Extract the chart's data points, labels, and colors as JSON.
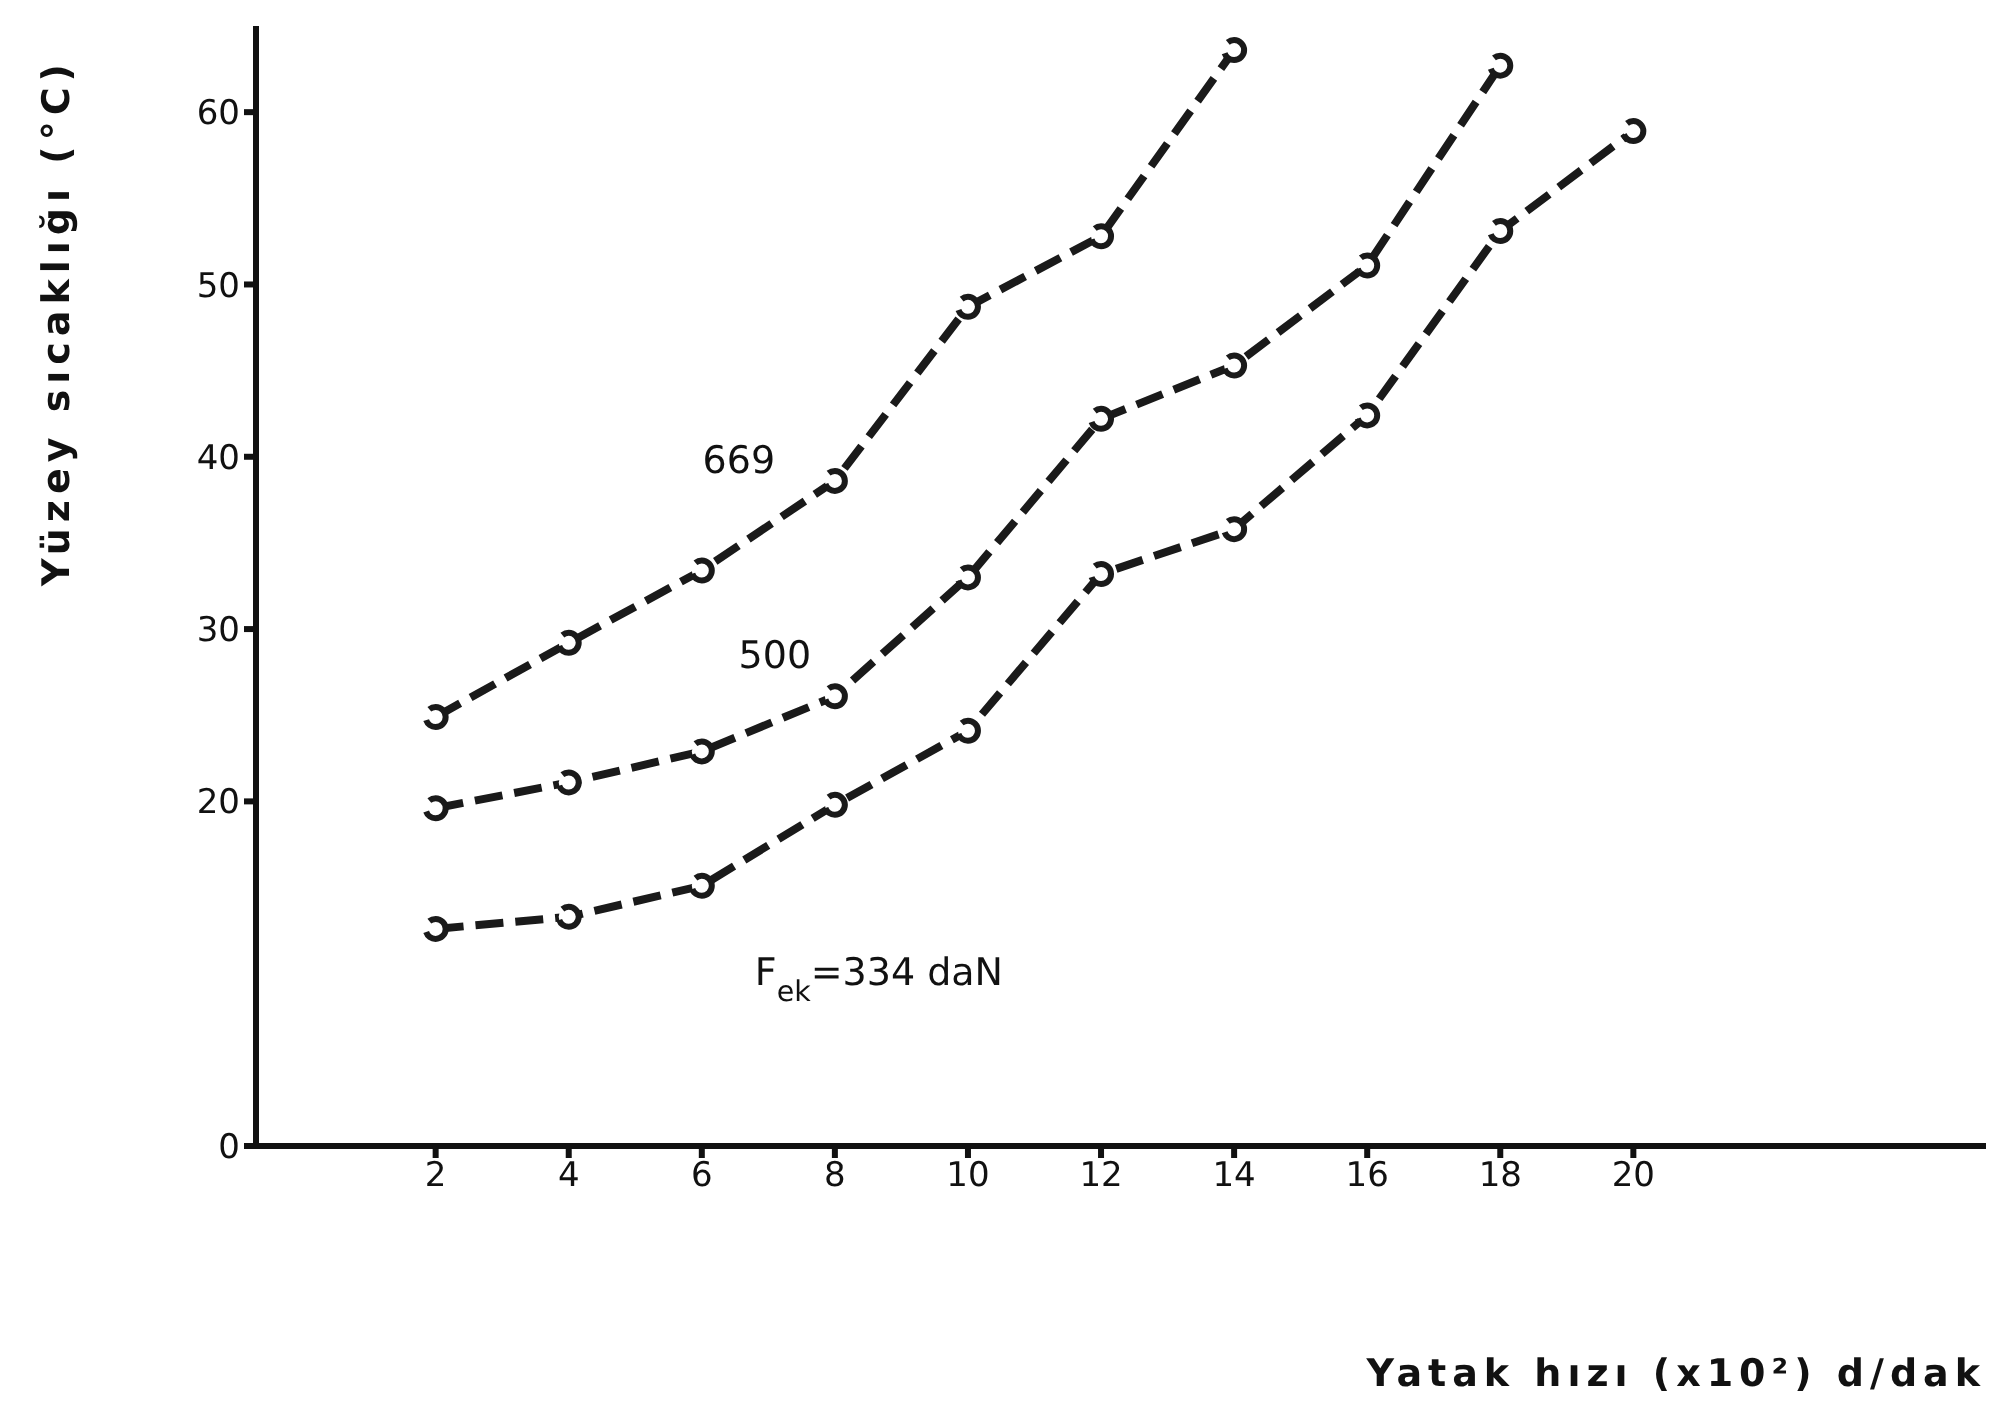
{
  "chart_data": {
    "type": "line",
    "xlabel": "Yatak hızı (x10²) d/dak",
    "ylabel": "Yüzey sıcaklığı (°C)",
    "x": [
      2,
      4,
      6,
      8,
      10,
      12,
      14,
      16,
      18,
      20
    ],
    "series": [
      {
        "name": "669",
        "color": "#1a1a1a",
        "values": [
          24.9,
          29.2,
          33.4,
          38.6,
          48.7,
          52.8,
          63.6,
          null,
          null,
          null
        ]
      },
      {
        "name": "500",
        "color": "#1a1a1a",
        "values": [
          19.6,
          21.1,
          22.9,
          26.1,
          33.0,
          42.2,
          45.3,
          51.1,
          62.7,
          null
        ]
      },
      {
        "name": "F$_{ek}$=334 daN",
        "color": "#1a1a1a",
        "values": [
          12.6,
          13.3,
          15.1,
          19.8,
          24.1,
          33.2,
          35.8,
          42.4,
          53.1,
          58.9
        ]
      }
    ],
    "xlim": [
      -0.7,
      25.3
    ],
    "xticks": [
      2,
      4,
      6,
      8,
      10,
      12,
      14,
      16,
      18,
      20
    ],
    "ylim": [
      0,
      65
    ],
    "yticks": [
      0,
      20,
      30,
      40,
      50,
      60
    ],
    "grid": false,
    "legend": false,
    "marker": "circle",
    "line_style": "dashed"
  }
}
